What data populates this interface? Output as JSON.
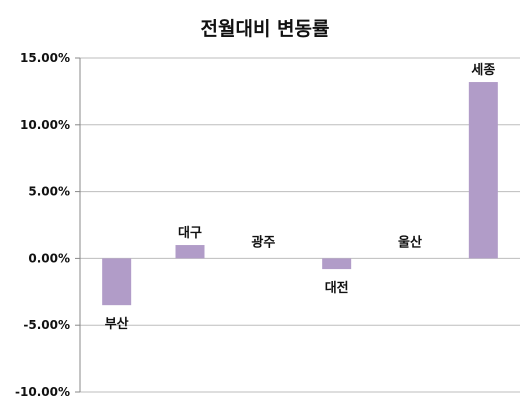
{
  "chart_data": {
    "type": "bar",
    "title": "전월대비 변동률",
    "categories": [
      "부산",
      "대구",
      "광주",
      "대전",
      "울산",
      "세종"
    ],
    "values": [
      -3.5,
      1.0,
      0.0,
      -0.8,
      0.0,
      13.2
    ],
    "ylim": [
      -10,
      15
    ],
    "yticks": [
      "15.00%",
      "10.00%",
      "5.00%",
      "0.00%",
      "-5.00%",
      "-10.00%"
    ],
    "ytick_values": [
      15,
      10,
      5,
      0,
      -5,
      -10
    ],
    "bar_color": "#b19cc8",
    "grid": true,
    "legend": "none"
  }
}
